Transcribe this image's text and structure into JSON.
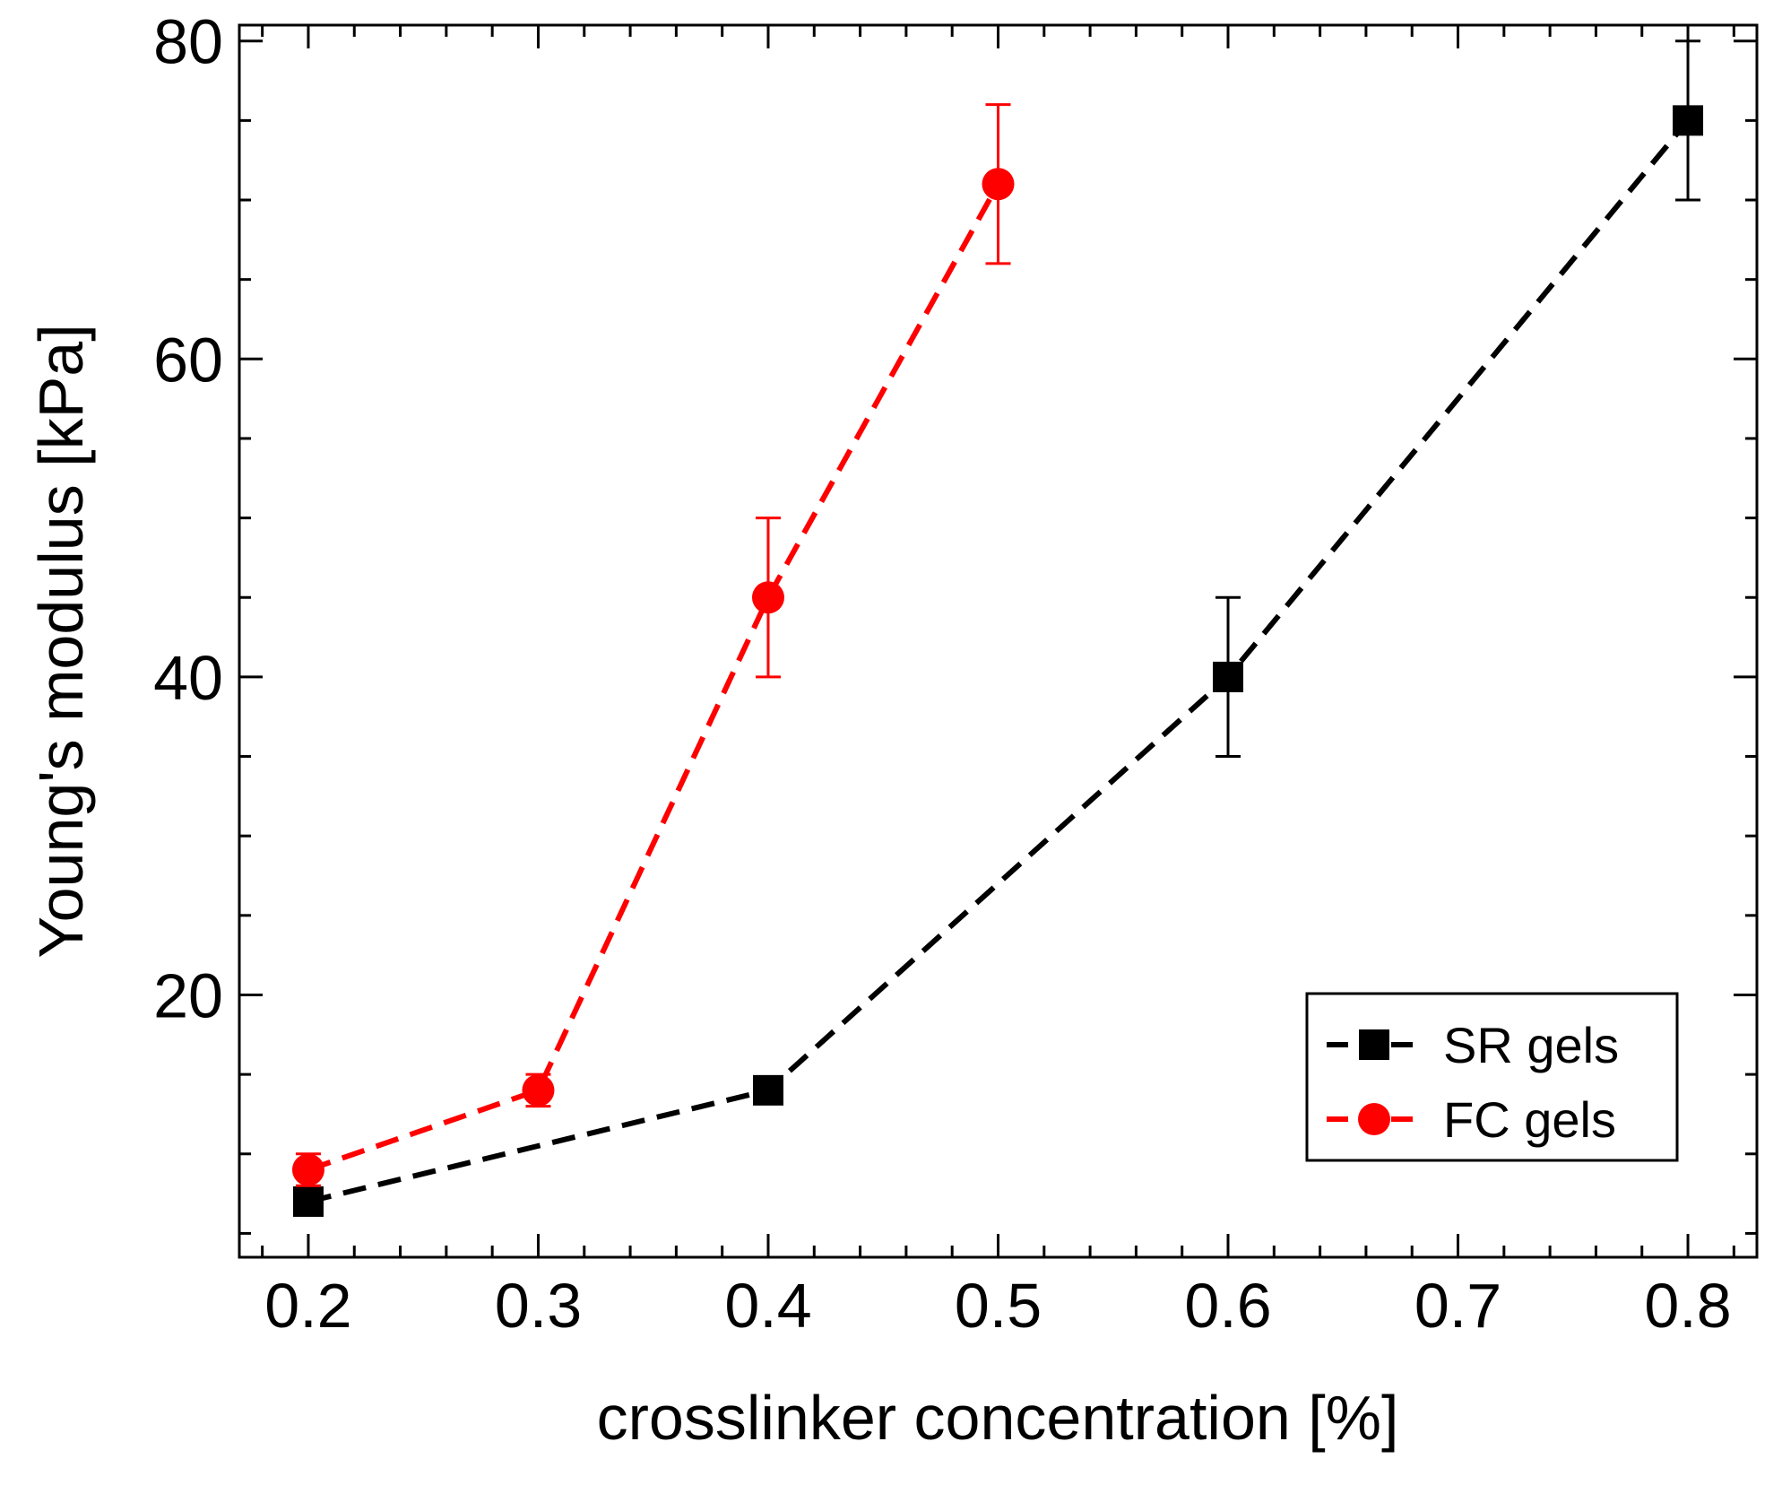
{
  "chart_data": {
    "type": "line",
    "title": "",
    "xlabel": "crosslinker concentration [%]",
    "ylabel": "Young's modulus [kPa]",
    "xlim": [
      0.17,
      0.83
    ],
    "ylim": [
      3.5,
      81
    ],
    "x_ticks": [
      0.2,
      0.3,
      0.4,
      0.5,
      0.6,
      0.7,
      0.8
    ],
    "x_tick_labels": [
      "0.2",
      "0.3",
      "0.4",
      "0.5",
      "0.6",
      "0.7",
      "0.8"
    ],
    "x_minor_step": 0.02,
    "y_ticks": [
      20,
      40,
      60,
      80
    ],
    "y_tick_labels": [
      "20",
      "40",
      "60",
      "80"
    ],
    "y_minor_step": 5,
    "grid": false,
    "legend_position": "bottom-right",
    "series": [
      {
        "name": "SR gels",
        "color": "#000000",
        "marker": "square",
        "line_style": "dashed",
        "x": [
          0.2,
          0.4,
          0.6,
          0.8
        ],
        "y": [
          7,
          14,
          40,
          75
        ],
        "error": [
          0,
          0,
          5,
          5
        ]
      },
      {
        "name": "FC gels",
        "color": "#ff0000",
        "marker": "circle",
        "line_style": "dashed",
        "x": [
          0.2,
          0.3,
          0.4,
          0.5
        ],
        "y": [
          9,
          14,
          45,
          71
        ],
        "error": [
          1,
          1,
          5,
          5
        ]
      }
    ]
  }
}
